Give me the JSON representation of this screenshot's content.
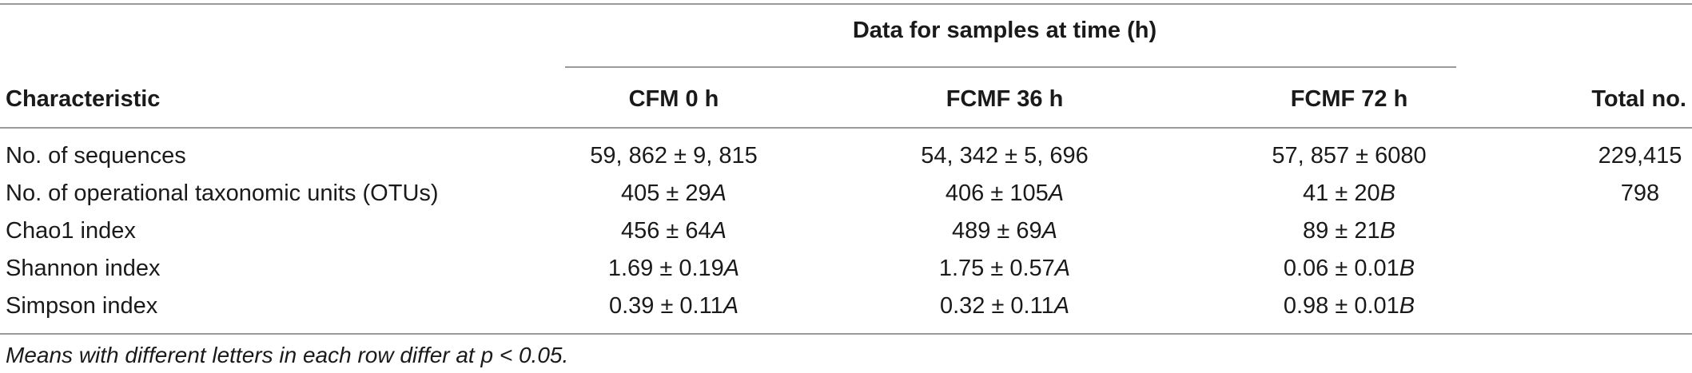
{
  "table": {
    "group_header": "Data for samples at time (h)",
    "columns": {
      "characteristic": "Characteristic",
      "cfm0": "CFM 0 h",
      "fcmf36": "FCMF 36 h",
      "fcmf72": "FCMF 72 h",
      "total": "Total no."
    },
    "rows": [
      {
        "label": "No. of sequences",
        "cfm0": "59, 862 ± 9, 815",
        "cfm0_letter": "",
        "fcmf36": "54, 342 ± 5, 696",
        "fcmf36_letter": "",
        "fcmf72": "57, 857 ± 6080",
        "fcmf72_letter": "",
        "total": "229,415"
      },
      {
        "label": "No. of operational taxonomic units (OTUs)",
        "cfm0": "405 ± 29",
        "cfm0_letter": "A",
        "fcmf36": "406 ± 105",
        "fcmf36_letter": "A",
        "fcmf72": "41 ± 20",
        "fcmf72_letter": "B",
        "total": "798"
      },
      {
        "label": "Chao1 index",
        "cfm0": "456 ± 64",
        "cfm0_letter": "A",
        "fcmf36": "489 ± 69",
        "fcmf36_letter": "A",
        "fcmf72": "89 ± 21",
        "fcmf72_letter": "B",
        "total": ""
      },
      {
        "label": "Shannon index",
        "cfm0": "1.69 ± 0.19",
        "cfm0_letter": "A",
        "fcmf36": "1.75 ± 0.57",
        "fcmf36_letter": "A",
        "fcmf72": "0.06 ± 0.01",
        "fcmf72_letter": "B",
        "total": ""
      },
      {
        "label": "Simpson index",
        "cfm0": "0.39 ± 0.11",
        "cfm0_letter": "A",
        "fcmf36": "0.32 ± 0.11",
        "fcmf36_letter": "A",
        "fcmf72": "0.98 ± 0.01",
        "fcmf72_letter": "B",
        "total": ""
      }
    ],
    "footnote": "Means with different letters in each row differ at p < 0.05."
  }
}
